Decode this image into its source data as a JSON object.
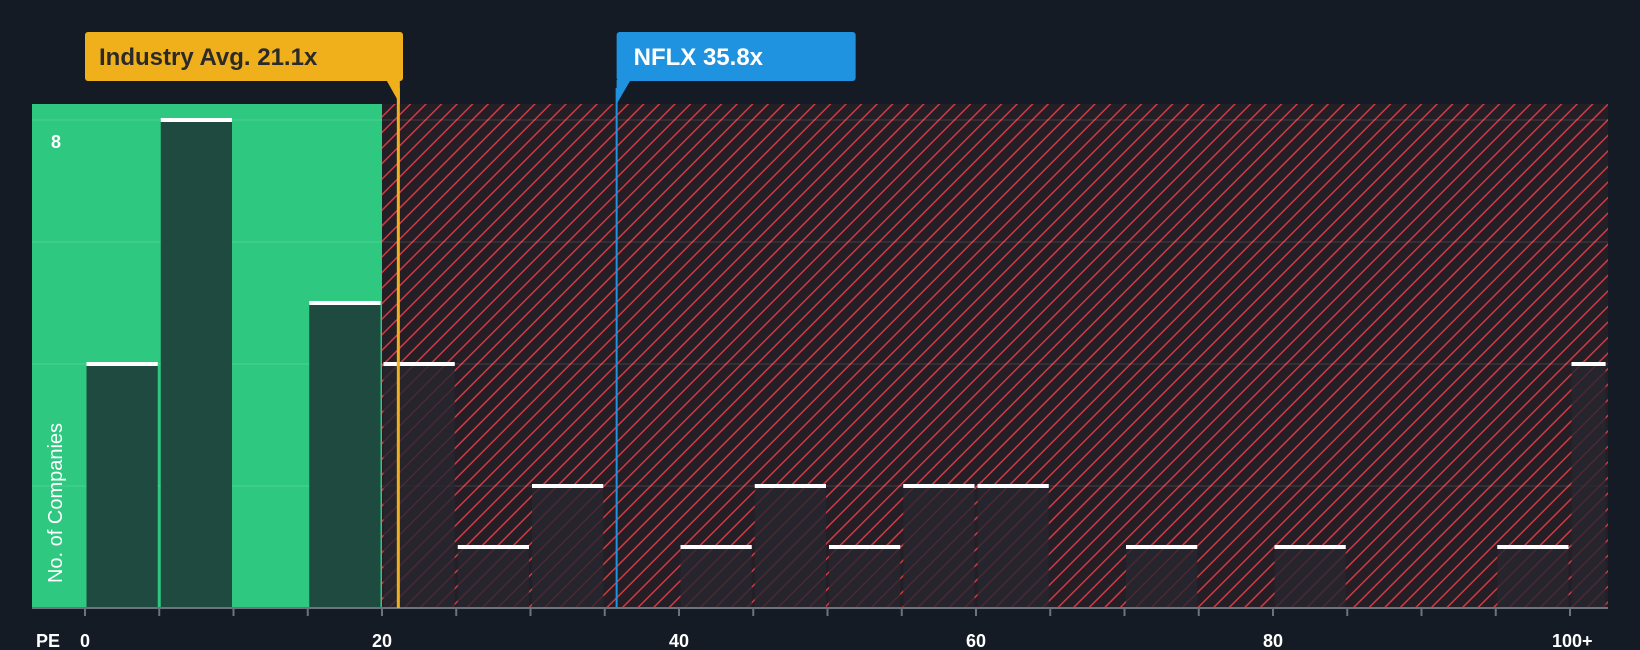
{
  "chart_data": {
    "type": "bar",
    "title": "",
    "xlabel": "PE",
    "ylabel": "No. of Companies",
    "xlim": [
      0,
      102.5
    ],
    "ylim": [
      0,
      8.3
    ],
    "x_ticks": [
      {
        "value": 0,
        "label": "0"
      },
      {
        "value": 20,
        "label": "20"
      },
      {
        "value": 40,
        "label": "40"
      },
      {
        "value": 60,
        "label": "60"
      },
      {
        "value": 80,
        "label": "80"
      },
      {
        "value": 100,
        "label": "100+"
      }
    ],
    "y_tick_labels": [
      {
        "value": 8,
        "label": "8"
      }
    ],
    "bins": [
      {
        "start": 0,
        "end": 5,
        "count": 4
      },
      {
        "start": 5,
        "end": 10,
        "count": 8
      },
      {
        "start": 10,
        "end": 15,
        "count": 0
      },
      {
        "start": 15,
        "end": 20,
        "count": 5
      },
      {
        "start": 20,
        "end": 25,
        "count": 4
      },
      {
        "start": 25,
        "end": 30,
        "count": 1
      },
      {
        "start": 30,
        "end": 35,
        "count": 2
      },
      {
        "start": 35,
        "end": 40,
        "count": 0
      },
      {
        "start": 40,
        "end": 45,
        "count": 1
      },
      {
        "start": 45,
        "end": 50,
        "count": 2
      },
      {
        "start": 50,
        "end": 55,
        "count": 1
      },
      {
        "start": 55,
        "end": 60,
        "count": 2
      },
      {
        "start": 60,
        "end": 65,
        "count": 2
      },
      {
        "start": 65,
        "end": 70,
        "count": 0
      },
      {
        "start": 70,
        "end": 75,
        "count": 1
      },
      {
        "start": 75,
        "end": 80,
        "count": 0
      },
      {
        "start": 80,
        "end": 85,
        "count": 1
      },
      {
        "start": 85,
        "end": 90,
        "count": 0
      },
      {
        "start": 90,
        "end": 95,
        "count": 0
      },
      {
        "start": 95,
        "end": 100,
        "count": 1
      },
      {
        "start": 100,
        "end": 102.5,
        "count": 4
      }
    ],
    "fair_zone_end": 20,
    "industry_avg": {
      "label": "Industry Avg. 21.1x",
      "value": 21.1
    },
    "company": {
      "label": "NFLX 35.8x",
      "value": 35.8
    },
    "grid": true,
    "colors": {
      "background": "#151b24",
      "fair_zone": "#2ec880",
      "fair_bar": "#1e4a3f",
      "expensive_zone_base": "#241e27",
      "expensive_hatch": "#d23a3f",
      "expensive_bar": "#27262f",
      "bar_cap": "#ffffff",
      "industry_avg": "#f0b01c",
      "company": "#1f92e0",
      "axis": "#6d737b"
    }
  }
}
